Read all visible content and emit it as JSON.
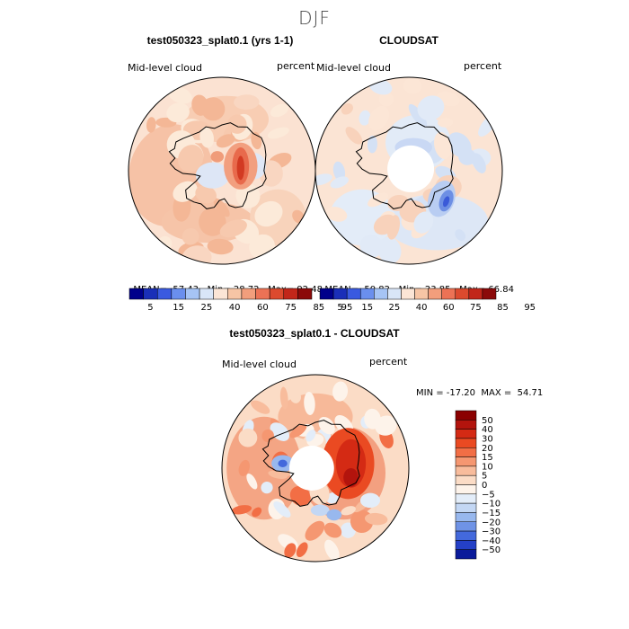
{
  "title": "DJF",
  "colors": {
    "ocean_land_edge": "#000000",
    "hole": "#ffffff"
  },
  "panels": [
    {
      "id": "model",
      "title": "test050323_splat0.1 (yrs 1-1)",
      "variable": "Mid-level cloud",
      "units": "percent",
      "stats": {
        "mean_label": "MEAN=",
        "mean": "57.43",
        "min_label": "Min=",
        "min": "28.72",
        "max_label": "Max=",
        "max": "92.48"
      }
    },
    {
      "id": "cloudsat",
      "title": "CLOUDSAT",
      "variable": "Mid-level cloud",
      "units": "percent",
      "stats": {
        "mean_label": "MEAN=",
        "mean": "50.82",
        "min_label": "Min=",
        "min": "23.85",
        "max_label": "Max=",
        "max": "66.84"
      }
    },
    {
      "id": "diff",
      "title": "test050323_splat0.1 - CLOUDSAT",
      "variable": "Mid-level cloud",
      "units": "percent",
      "minmax_text": "MIN = -17.20  MAX =  54.71"
    }
  ],
  "chart_data": [
    {
      "type": "heatmap",
      "projection": "south-polar-stereographic",
      "title": "test050323_splat0.1 (yrs 1-1)",
      "variable": "Mid-level cloud",
      "units": "percent",
      "mean": 57.43,
      "min": 28.72,
      "max": 92.48,
      "colorbar": {
        "levels": [
          5,
          15,
          25,
          40,
          60,
          75,
          85,
          95
        ],
        "colors": [
          "#00008b",
          "#1a2fb8",
          "#3a5ae0",
          "#6a8fee",
          "#a6c4f5",
          "#d9e6f8",
          "#fbe5d6",
          "#f7c5a5",
          "#f29e7c",
          "#ec7255",
          "#dc4a2e",
          "#c2261a",
          "#8b0a0a"
        ]
      }
    },
    {
      "type": "heatmap",
      "projection": "south-polar-stereographic",
      "title": "CLOUDSAT",
      "variable": "Mid-level cloud",
      "units": "percent",
      "mean": 50.82,
      "min": 23.85,
      "max": 66.84,
      "colorbar": {
        "levels": [
          5,
          15,
          25,
          40,
          60,
          75,
          85,
          95
        ],
        "colors": [
          "#00008b",
          "#1a2fb8",
          "#3a5ae0",
          "#6a8fee",
          "#a6c4f5",
          "#d9e6f8",
          "#fbe5d6",
          "#f7c5a5",
          "#f29e7c",
          "#ec7255",
          "#dc4a2e",
          "#c2261a",
          "#8b0a0a"
        ]
      }
    },
    {
      "type": "heatmap",
      "projection": "south-polar-stereographic",
      "title": "test050323_splat0.1 - CLOUDSAT",
      "variable": "Mid-level cloud",
      "units": "percent",
      "min": -17.2,
      "max": 54.71,
      "colorbar": {
        "levels": [
          50,
          40,
          30,
          20,
          15,
          10,
          5,
          0,
          -5,
          -10,
          -15,
          -20,
          -30,
          -40,
          -50
        ],
        "colors": [
          "#8b0000",
          "#b3140d",
          "#d42a14",
          "#ea4a22",
          "#f26e45",
          "#f59771",
          "#f8bc9c",
          "#fbdcc6",
          "#fdf3ea",
          "#e3edf9",
          "#c3d7f4",
          "#98b8ee",
          "#6f93e6",
          "#4369dc",
          "#2440c7",
          "#0a1a9a"
        ]
      }
    }
  ]
}
